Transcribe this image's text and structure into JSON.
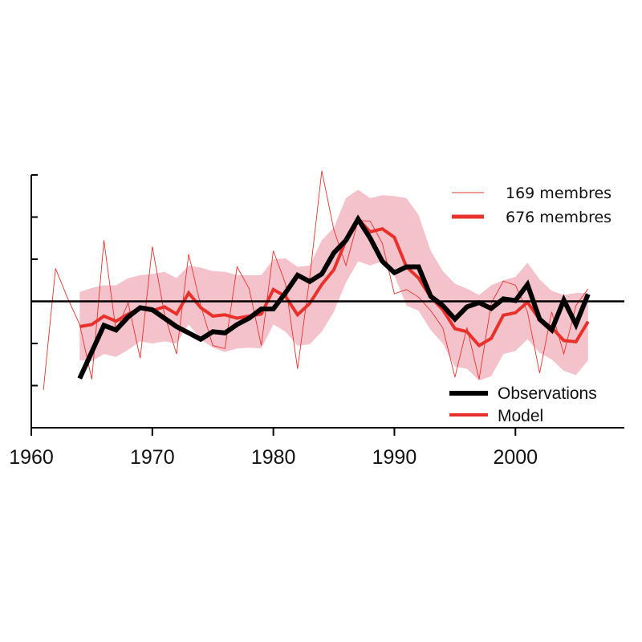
{
  "chart_data": {
    "type": "line",
    "title": "",
    "xlabel": "",
    "ylabel": "",
    "xlim": [
      1960,
      2009
    ],
    "ylim": [
      -3,
      3
    ],
    "x_ticks": [
      1960,
      1970,
      1980,
      1990,
      2000
    ],
    "x_tick_labels": [
      "1960",
      "1970",
      "1980",
      "1990",
      "2000"
    ],
    "y_ticks": [
      -3,
      -2,
      -1,
      0,
      1,
      2,
      3
    ],
    "zero_line": true,
    "grid": false,
    "legend_top": {
      "placement": "top-right",
      "entries": [
        {
          "label": "169 membres",
          "series": "thin"
        },
        {
          "label": "676 membres",
          "series": "thick"
        }
      ]
    },
    "legend_bottom": {
      "placement": "bottom-right",
      "entries": [
        {
          "label": "Observations",
          "series": "observations"
        },
        {
          "label": "Model",
          "series": "model"
        }
      ]
    },
    "series": [
      {
        "id": "observations",
        "name": "Observations",
        "color": "#000000",
        "x": [
          1964,
          1965,
          1966,
          1967,
          1968,
          1969,
          1970,
          1971,
          1972,
          1973,
          1974,
          1975,
          1976,
          1977,
          1978,
          1979,
          1980,
          1981,
          1982,
          1983,
          1984,
          1985,
          1986,
          1987,
          1988,
          1989,
          1990,
          1991,
          1992,
          1993,
          1994,
          1995,
          1996,
          1997,
          1998,
          1999,
          2000,
          2001,
          2002,
          2003,
          2004,
          2005,
          2006
        ],
        "values": [
          -1.83,
          -1.2,
          -0.57,
          -0.68,
          -0.37,
          -0.15,
          -0.2,
          -0.4,
          -0.6,
          -0.75,
          -0.9,
          -0.72,
          -0.75,
          -0.55,
          -0.4,
          -0.18,
          -0.18,
          0.2,
          0.62,
          0.47,
          0.65,
          1.15,
          1.45,
          1.95,
          1.5,
          0.95,
          0.68,
          0.82,
          0.82,
          0.12,
          -0.1,
          -0.42,
          -0.13,
          -0.03,
          -0.17,
          0.06,
          0.02,
          0.4,
          -0.42,
          -0.68,
          0.03,
          -0.55,
          0.17
        ]
      },
      {
        "id": "thick",
        "name": "676 membres",
        "color": "#e8312a",
        "x": [
          1964,
          1965,
          1966,
          1967,
          1968,
          1969,
          1970,
          1971,
          1972,
          1973,
          1974,
          1975,
          1976,
          1977,
          1978,
          1979,
          1980,
          1981,
          1982,
          1983,
          1984,
          1985,
          1986,
          1987,
          1988,
          1989,
          1990,
          1991,
          1992,
          1993,
          1994,
          1995,
          1996,
          1997,
          1998,
          1999,
          2000,
          2001,
          2002,
          2003,
          2004,
          2005,
          2006
        ],
        "values": [
          -0.6,
          -0.55,
          -0.35,
          -0.47,
          -0.3,
          -0.17,
          -0.22,
          -0.13,
          -0.3,
          0.2,
          -0.15,
          -0.35,
          -0.32,
          -0.4,
          -0.35,
          -0.3,
          0.28,
          0.12,
          -0.32,
          -0.05,
          0.4,
          0.75,
          1.45,
          1.95,
          1.65,
          1.72,
          1.52,
          0.82,
          0.55,
          0.1,
          -0.2,
          -0.65,
          -0.72,
          -1.05,
          -0.88,
          -0.33,
          -0.27,
          -0.02,
          -0.43,
          -0.62,
          -0.93,
          -0.96,
          -0.48
        ]
      },
      {
        "id": "thin",
        "name": "169 membres",
        "color": "#e8312a",
        "x": [
          1961,
          1962,
          1963,
          1964,
          1965,
          1966,
          1967,
          1968,
          1969,
          1970,
          1971,
          1972,
          1973,
          1974,
          1975,
          1976,
          1977,
          1978,
          1979,
          1980,
          1981,
          1982,
          1983,
          1984,
          1985,
          1986,
          1987,
          1988,
          1989,
          1990,
          1991,
          1992,
          1993,
          1994,
          1995,
          1996,
          1997,
          1998,
          1999,
          2000,
          2001,
          2002,
          2003,
          2004,
          2005,
          2006
        ],
        "values": [
          -2.1,
          0.78,
          0.08,
          -0.55,
          -1.85,
          1.45,
          -0.72,
          -0.03,
          -1.35,
          1.3,
          -0.3,
          -1.25,
          1.12,
          -0.1,
          -1.05,
          -1.12,
          0.82,
          0.3,
          -1.05,
          1.2,
          0.42,
          -1.6,
          0.55,
          3.1,
          1.7,
          0.85,
          1.92,
          1.9,
          1.38,
          0.18,
          0.28,
          0.1,
          -0.22,
          -0.63,
          -1.8,
          -0.62,
          -1.85,
          -0.05,
          0.48,
          0.38,
          -0.25,
          -1.7,
          -0.25,
          -1.25,
          -0.1,
          0.3
        ]
      },
      {
        "id": "band",
        "name": "",
        "color": "#f4c2cb",
        "x": [
          1964,
          1965,
          1966,
          1967,
          1968,
          1969,
          1970,
          1971,
          1972,
          1973,
          1974,
          1975,
          1976,
          1977,
          1978,
          1979,
          1980,
          1981,
          1982,
          1983,
          1984,
          1985,
          1986,
          1987,
          1988,
          1989,
          1990,
          1991,
          1992,
          1993,
          1994,
          1995,
          1996,
          1997,
          1998,
          1999,
          2000,
          2001,
          2002,
          2003,
          2004,
          2005,
          2006
        ],
        "upper": [
          0.22,
          0.32,
          0.38,
          0.38,
          0.55,
          0.62,
          0.65,
          0.7,
          0.55,
          0.85,
          0.8,
          0.72,
          0.7,
          0.62,
          0.62,
          0.62,
          1.0,
          1.02,
          0.82,
          0.85,
          1.45,
          1.75,
          2.45,
          2.65,
          2.45,
          2.52,
          2.5,
          2.45,
          2.05,
          1.2,
          0.72,
          0.42,
          0.3,
          0.15,
          0.38,
          0.5,
          0.58,
          0.92,
          0.52,
          0.25,
          0.15,
          0.2,
          0.2
        ],
        "lower": [
          -1.4,
          -1.42,
          -1.25,
          -1.32,
          -1.15,
          -0.95,
          -1.0,
          -0.95,
          -1.0,
          -0.55,
          -0.9,
          -1.1,
          -1.2,
          -1.12,
          -1.1,
          -1.12,
          -0.55,
          -0.72,
          -1.05,
          -1.02,
          -0.72,
          -0.25,
          0.45,
          0.95,
          0.85,
          0.95,
          0.62,
          -0.1,
          -0.22,
          -0.68,
          -1.0,
          -1.55,
          -1.6,
          -1.88,
          -1.78,
          -1.25,
          -1.18,
          -0.9,
          -1.22,
          -1.38,
          -1.65,
          -1.75,
          -1.4
        ]
      }
    ]
  }
}
